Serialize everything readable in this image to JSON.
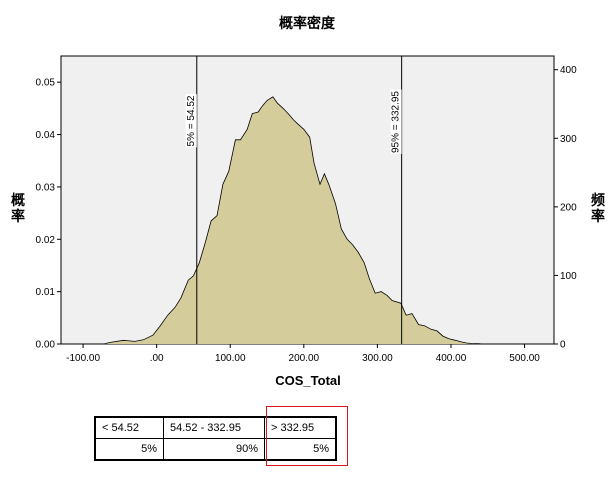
{
  "chart_data": {
    "type": "area",
    "title": "概率密度",
    "xlabel": "COS_Total",
    "ylabel_left": "概率",
    "ylabel_right": "频率",
    "xlim": [
      -130,
      540
    ],
    "ylim_left": [
      0,
      0.055
    ],
    "ylim_right": [
      0,
      420
    ],
    "x_ticks": [
      -100,
      0,
      100,
      200,
      300,
      400,
      500
    ],
    "x_tick_labels": [
      "-100.00",
      ".00",
      "100.00",
      "200.00",
      "300.00",
      "400.00",
      "500.00"
    ],
    "y_left_ticks": [
      0,
      0.01,
      0.02,
      0.03,
      0.04,
      0.05
    ],
    "y_left_tick_labels": [
      "0.00",
      "0.01",
      "0.02",
      "0.03",
      "0.04",
      "0.05"
    ],
    "y_right_ticks": [
      0,
      100,
      200,
      300,
      400
    ],
    "y_right_tick_labels": [
      "0",
      "100",
      "200",
      "300",
      "400"
    ],
    "grid": false,
    "background_color": "#f0f0f0",
    "fill_color": "#d4cd9b",
    "series": [
      {
        "x": [
          -72,
          -63,
          -45,
          -30,
          -18,
          -5,
          5,
          15,
          25,
          33,
          43,
          50,
          58,
          66,
          74,
          82,
          90,
          98,
          107,
          114,
          123,
          130,
          138,
          144,
          150,
          158,
          164,
          172,
          180,
          186,
          192,
          200,
          208,
          214,
          222,
          228,
          234,
          243,
          251,
          259,
          266,
          274,
          282,
          289,
          297,
          305,
          313,
          320,
          332,
          339,
          347,
          356,
          364,
          373,
          381,
          389,
          397,
          406,
          414,
          421,
          428,
          437,
          444
        ],
        "y": [
          0.0,
          0.0003,
          0.0007,
          0.0005,
          0.0008,
          0.0017,
          0.0035,
          0.0055,
          0.007,
          0.0088,
          0.0122,
          0.013,
          0.0155,
          0.0193,
          0.0235,
          0.0245,
          0.0305,
          0.033,
          0.039,
          0.039,
          0.041,
          0.044,
          0.0443,
          0.0455,
          0.0465,
          0.0472,
          0.046,
          0.045,
          0.0438,
          0.0428,
          0.042,
          0.041,
          0.0395,
          0.0345,
          0.0305,
          0.0325,
          0.0305,
          0.0268,
          0.022,
          0.02,
          0.019,
          0.0175,
          0.0155,
          0.0125,
          0.0097,
          0.01,
          0.0093,
          0.0083,
          0.0078,
          0.0055,
          0.0058,
          0.0037,
          0.0035,
          0.0028,
          0.0025,
          0.0015,
          0.001,
          0.0007,
          0.0004,
          0.0002,
          0.0001,
          5e-05,
          0.0
        ]
      }
    ],
    "reference_lines": [
      {
        "x": 54.52,
        "label": "5% = 54.52"
      },
      {
        "x": 332.95,
        "label": "95% = 332.95"
      }
    ]
  },
  "stats_table": {
    "headers": [
      "< 54.52",
      "54.52 - 332.95",
      "> 332.95"
    ],
    "values": [
      "5%",
      "90%",
      "5%"
    ]
  }
}
